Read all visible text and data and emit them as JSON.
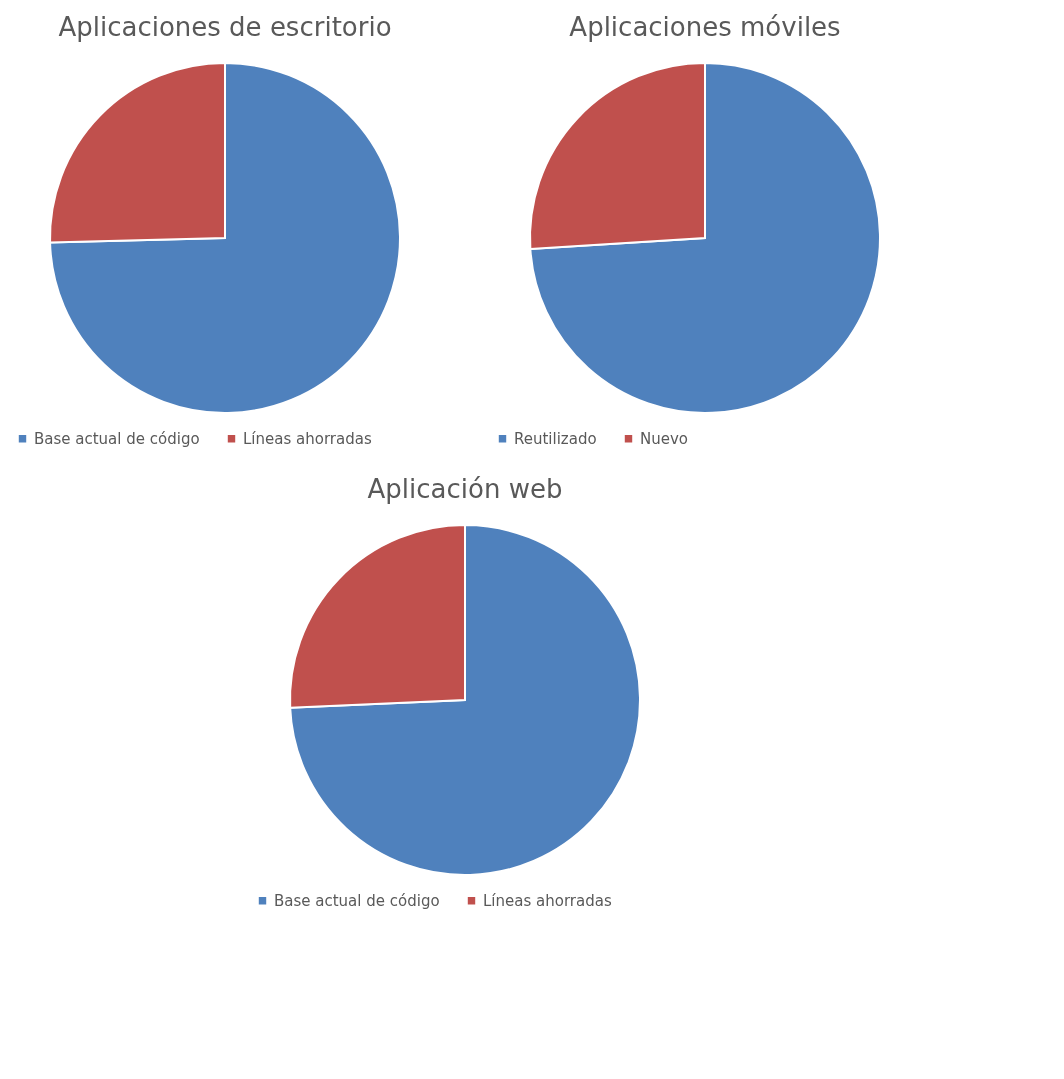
{
  "chart_data": [
    {
      "type": "pie",
      "title": "Aplicaciones de escritorio",
      "categories": [
        "Base actual de código",
        "Líneas ahorradas"
      ],
      "values": [
        74.6,
        25.4
      ],
      "colors": [
        "#4f81bd",
        "#c0504d"
      ],
      "legend": "bottom"
    },
    {
      "type": "pie",
      "title": "Aplicaciones móviles",
      "categories": [
        "Reutilizado",
        "Nuevo"
      ],
      "values": [
        74,
        26
      ],
      "colors": [
        "#4f81bd",
        "#c0504d"
      ],
      "legend": "bottom"
    },
    {
      "type": "pie",
      "title": "Aplicación web",
      "categories": [
        "Base actual de código",
        "Líneas ahorradas"
      ],
      "values": [
        74.3,
        25.7
      ],
      "colors": [
        "#4f81bd",
        "#c0504d"
      ],
      "legend": "bottom"
    }
  ]
}
